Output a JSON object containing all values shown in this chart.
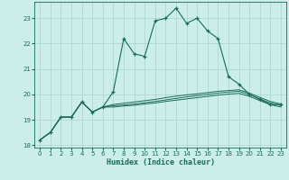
{
  "xlabel": "Humidex (Indice chaleur)",
  "background_color": "#cceee8",
  "grid_color": "#aad4ce",
  "line_color": "#1a6b5a",
  "xlim": [
    -0.5,
    23.5
  ],
  "ylim": [
    17.9,
    23.65
  ],
  "yticks": [
    18,
    19,
    20,
    21,
    22,
    23
  ],
  "xticks": [
    0,
    1,
    2,
    3,
    4,
    5,
    6,
    7,
    8,
    9,
    10,
    11,
    12,
    13,
    14,
    15,
    16,
    17,
    18,
    19,
    20,
    21,
    22,
    23
  ],
  "line1_x": [
    0,
    1,
    2,
    3,
    4,
    5,
    6,
    7,
    8,
    9,
    10,
    11,
    12,
    13,
    14,
    15,
    16,
    17,
    18,
    19,
    20,
    21,
    22,
    23
  ],
  "line1_y": [
    18.2,
    18.5,
    19.1,
    19.1,
    19.7,
    19.3,
    19.5,
    20.1,
    22.2,
    21.6,
    21.5,
    22.9,
    23.0,
    23.4,
    22.8,
    23.0,
    22.5,
    22.2,
    20.7,
    20.4,
    20.0,
    19.8,
    19.6,
    19.6
  ],
  "line2_x": [
    0,
    1,
    2,
    3,
    4,
    5,
    6,
    7,
    8,
    9,
    10,
    11,
    12,
    13,
    14,
    15,
    16,
    17,
    18,
    19,
    20,
    21,
    22,
    23
  ],
  "line2_y": [
    18.2,
    18.5,
    19.1,
    19.1,
    19.7,
    19.3,
    19.5,
    19.6,
    19.65,
    19.7,
    19.75,
    19.8,
    19.87,
    19.93,
    19.98,
    20.02,
    20.07,
    20.12,
    20.15,
    20.18,
    20.05,
    19.88,
    19.72,
    19.62
  ],
  "line3_x": [
    0,
    1,
    2,
    3,
    4,
    5,
    6,
    7,
    8,
    9,
    10,
    11,
    12,
    13,
    14,
    15,
    16,
    17,
    18,
    19,
    20,
    21,
    22,
    23
  ],
  "line3_y": [
    18.2,
    18.5,
    19.1,
    19.1,
    19.7,
    19.3,
    19.5,
    19.55,
    19.58,
    19.62,
    19.67,
    19.72,
    19.78,
    19.84,
    19.9,
    19.95,
    20.0,
    20.05,
    20.09,
    20.12,
    19.99,
    19.82,
    19.66,
    19.56
  ],
  "line4_x": [
    0,
    1,
    2,
    3,
    4,
    5,
    6,
    7,
    8,
    9,
    10,
    11,
    12,
    13,
    14,
    15,
    16,
    17,
    18,
    19,
    20,
    21,
    22,
    23
  ],
  "line4_y": [
    18.2,
    18.5,
    19.1,
    19.1,
    19.7,
    19.3,
    19.5,
    19.5,
    19.54,
    19.57,
    19.62,
    19.66,
    19.72,
    19.77,
    19.82,
    19.87,
    19.92,
    19.97,
    20.01,
    20.04,
    19.92,
    19.75,
    19.59,
    19.5
  ]
}
